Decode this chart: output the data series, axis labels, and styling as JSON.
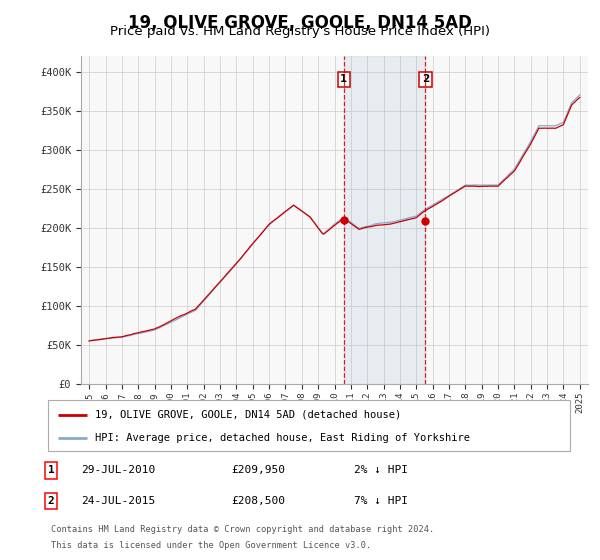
{
  "title": "19, OLIVE GROVE, GOOLE, DN14 5AD",
  "subtitle": "Price paid vs. HM Land Registry's House Price Index (HPI)",
  "title_fontsize": 12,
  "subtitle_fontsize": 9.5,
  "ylim": [
    0,
    420000
  ],
  "yticks": [
    0,
    50000,
    100000,
    150000,
    200000,
    250000,
    300000,
    350000,
    400000
  ],
  "ytick_labels": [
    "£0",
    "£50K",
    "£100K",
    "£150K",
    "£200K",
    "£250K",
    "£300K",
    "£350K",
    "£400K"
  ],
  "xlim_start": 1994.5,
  "xlim_end": 2025.5,
  "sale1_date": 2010.57,
  "sale1_price": 209950,
  "sale2_date": 2015.56,
  "sale2_price": 208500,
  "property_color": "#cc0000",
  "hpi_color": "#88aacc",
  "hpi_shade_color": "#ddeeff",
  "property_label": "19, OLIVE GROVE, GOOLE, DN14 5AD (detached house)",
  "hpi_label": "HPI: Average price, detached house, East Riding of Yorkshire",
  "footnote_line1": "Contains HM Land Registry data © Crown copyright and database right 2024.",
  "footnote_line2": "This data is licensed under the Open Government Licence v3.0.",
  "background_color": "#ffffff",
  "grid_color": "#cccccc",
  "sale1_date_str": "29-JUL-2010",
  "sale1_price_str": "£209,950",
  "sale1_hpi_str": "2% ↓ HPI",
  "sale2_date_str": "24-JUL-2015",
  "sale2_price_str": "£208,500",
  "sale2_hpi_str": "7% ↓ HPI"
}
